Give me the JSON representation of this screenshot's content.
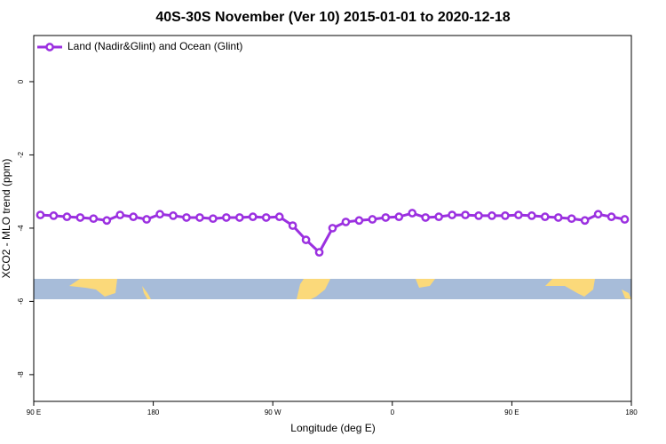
{
  "chart_data": {
    "type": "line",
    "title": "40S-30S November (Ver 10)   2015-01-01 to 2020-12-18",
    "xlabel": "Longitude (deg E)",
    "ylabel": "XCO2 - MLO trend (ppm)",
    "x": [
      95,
      105,
      115,
      125,
      135,
      145,
      155,
      165,
      175,
      185,
      195,
      205,
      215,
      225,
      235,
      245,
      255,
      265,
      275,
      285,
      295,
      305,
      315,
      325,
      335,
      345,
      355,
      365,
      375,
      385,
      395,
      405,
      415,
      425,
      435,
      445,
      455,
      465,
      475,
      485,
      495,
      505,
      515,
      525,
      535
    ],
    "series": [
      {
        "name": "Land (Nadir&Glint) and Ocean (Glint)",
        "color": "#9b30e0",
        "values": [
          -3.64,
          -3.66,
          -3.69,
          -3.71,
          -3.74,
          -3.79,
          -3.64,
          -3.69,
          -3.76,
          -3.62,
          -3.66,
          -3.71,
          -3.71,
          -3.74,
          -3.71,
          -3.71,
          -3.69,
          -3.71,
          -3.69,
          -3.93,
          -4.32,
          -4.66,
          -4.0,
          -3.83,
          -3.79,
          -3.76,
          -3.71,
          -3.69,
          -3.59,
          -3.71,
          -3.69,
          -3.64,
          -3.64,
          -3.66,
          -3.66,
          -3.66,
          -3.64,
          -3.66,
          -3.69,
          -3.71,
          -3.74,
          -3.79,
          -3.62,
          -3.69,
          -3.76
        ]
      }
    ],
    "xlim": [
      90,
      540
    ],
    "xticks": [
      {
        "value": 90,
        "label": "90 E"
      },
      180,
      {
        "value": 270,
        "label": "90 W"
      },
      {
        "value": 360,
        "label": "0"
      },
      {
        "value": 450,
        "label": "90 E"
      },
      {
        "value": 540,
        "label": "180"
      }
    ],
    "ylim": [
      -8.73,
      1.26
    ],
    "yticks": [
      0,
      -2,
      -4,
      -6,
      -8
    ],
    "legend": "top-left"
  }
}
